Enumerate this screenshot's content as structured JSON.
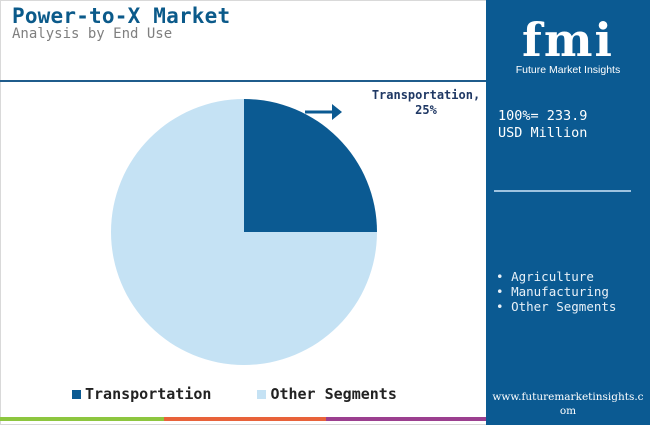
{
  "header": {
    "title": "Power-to-X Market",
    "subtitle": "Analysis by End Use"
  },
  "chart_data": {
    "type": "pie",
    "categories": [
      "Transportation",
      "Other Segments"
    ],
    "values": [
      25,
      75
    ],
    "value_unit": "%",
    "colors": [
      "#0b5a92",
      "#c5e2f4"
    ],
    "callout": "Transportation, 25%",
    "legend": [
      "Transportation",
      "Other Segments"
    ],
    "legend_position": "bottom",
    "total_label": "100%= 233.9 USD Million"
  },
  "side_panel": {
    "logo_text": "fmi",
    "logo_subtext": "Future Market Insights",
    "total_line1": "100%= 233.9",
    "total_line2": "USD Million",
    "other_segments": [
      "Agriculture",
      "Manufacturing",
      "Other Segments"
    ],
    "website": "www.futuremarketinsights.com",
    "background": "#0b5a92"
  },
  "footer_bar_colors": [
    "#8dc63f",
    "#e8623a",
    "#9b3f8f"
  ]
}
